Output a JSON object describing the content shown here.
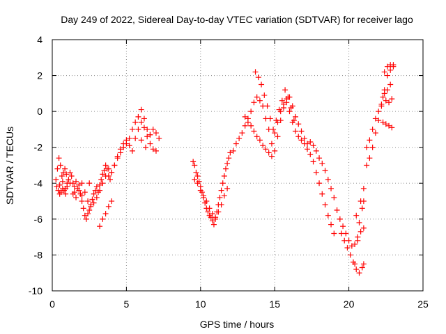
{
  "chart_data": {
    "type": "scatter",
    "title": "Day 249 of 2022, Sidereal Day-to-day VTEC variation (SDTVAR) for receiver lago",
    "xlabel": "GPS time / hours",
    "ylabel": "SDTVAR / TECUs",
    "xlim": [
      0,
      25
    ],
    "ylim": [
      -10,
      4
    ],
    "xticks": [
      0,
      5,
      10,
      15,
      20,
      25
    ],
    "yticks": [
      -10,
      -8,
      -6,
      -4,
      -2,
      0,
      2,
      4
    ],
    "xtick_labels": [
      "0",
      "5",
      "10",
      "15",
      "20",
      "25"
    ],
    "ytick_labels": [
      "-10",
      "-8",
      "-6",
      "-4",
      "-2",
      "0",
      "2",
      "4"
    ],
    "grid": true,
    "marker": "+",
    "series": [
      {
        "name": "SDTVAR",
        "color": "#ff0000",
        "x": [
          0.25,
          0.35,
          0.45,
          0.55,
          0.65,
          0.75,
          0.85,
          0.95,
          1.0,
          1.1,
          1.2,
          1.3,
          1.4,
          1.5,
          1.6,
          1.7,
          1.8,
          1.9,
          2.0,
          2.1,
          2.2,
          2.3,
          2.4,
          2.5,
          2.6,
          2.7,
          2.8,
          2.9,
          3.0,
          3.1,
          3.2,
          3.3,
          3.4,
          3.5,
          3.6,
          3.7,
          3.8,
          3.9,
          4.0,
          4.2,
          4.4,
          4.6,
          4.8,
          5.0,
          5.2,
          5.4,
          5.6,
          5.8,
          6.0,
          6.2,
          6.4,
          6.6,
          6.8,
          7.0,
          7.2,
          0.3,
          0.4,
          0.5,
          0.6,
          0.7,
          0.8,
          0.9,
          1.0,
          1.2,
          1.4,
          1.6,
          1.8,
          2.0,
          2.2,
          2.4,
          2.6,
          2.8,
          3.0,
          3.2,
          3.4,
          3.6,
          3.8,
          4.0,
          4.2,
          4.4,
          4.6,
          4.8,
          5.0,
          5.2,
          5.4,
          5.6,
          5.8,
          6.0,
          6.2,
          6.4,
          6.6,
          6.8,
          7.0,
          3.2,
          3.4,
          3.6,
          3.8,
          4.0,
          0.5,
          0.7,
          0.9,
          1.5,
          2.0,
          2.5,
          6.0,
          6.3,
          6.6,
          9.5,
          9.6,
          9.7,
          9.8,
          9.9,
          10.0,
          10.1,
          10.2,
          10.3,
          10.4,
          10.5,
          10.6,
          10.7,
          10.8,
          10.9,
          11.0,
          11.1,
          11.2,
          11.3,
          11.4,
          11.5,
          11.6,
          11.7,
          11.8,
          11.9,
          12.0,
          9.6,
          9.8,
          10.0,
          10.2,
          10.4,
          10.6,
          10.8,
          11.0,
          11.2,
          11.4,
          11.6,
          11.8,
          12.2,
          12.4,
          12.6,
          12.8,
          13.0,
          13.2,
          13.4,
          13.6,
          13.8,
          14.0,
          14.2,
          14.4,
          14.6,
          14.8,
          15.0,
          15.2,
          15.4,
          15.6,
          15.8,
          16.0,
          16.2,
          16.4,
          16.6,
          16.8,
          17.0,
          17.2,
          17.4,
          17.6,
          17.8,
          18.0,
          18.2,
          18.4,
          18.6,
          18.8,
          19.0,
          19.2,
          19.4,
          19.6,
          19.8,
          20.0,
          20.2,
          20.4,
          20.6,
          20.8,
          21.0,
          13.0,
          13.2,
          13.4,
          13.6,
          13.8,
          14.0,
          14.2,
          14.4,
          14.6,
          14.8,
          15.0,
          15.2,
          15.4,
          15.6,
          15.8,
          16.0,
          16.2,
          16.4,
          16.6,
          16.8,
          17.0,
          17.2,
          17.4,
          17.6,
          17.8,
          18.0,
          18.2,
          18.4,
          18.6,
          18.8,
          19.0,
          13.7,
          13.9,
          14.1,
          14.3,
          14.5,
          14.7,
          14.9,
          15.1,
          15.3,
          15.5,
          15.7,
          15.9,
          16.1,
          16.3,
          19.5,
          19.7,
          19.9,
          20.1,
          20.3,
          20.5,
          20.7,
          20.9,
          21.0,
          20.4,
          20.6,
          20.8,
          21.0,
          21.2,
          21.4,
          21.6,
          21.8,
          22.0,
          22.2,
          22.4,
          22.6,
          22.8,
          23.0,
          21.2,
          21.4,
          21.6,
          21.8,
          22.0,
          22.2,
          22.4,
          22.6,
          22.8,
          22.3,
          22.5,
          22.7,
          22.9,
          22.3,
          22.5,
          22.7,
          22.9,
          22.4,
          22.6,
          22.8,
          23.0,
          20.5,
          20.7,
          20.9,
          21.0
        ],
        "y": [
          -3.8,
          -3.2,
          -2.6,
          -3.0,
          -3.6,
          -3.4,
          -3.2,
          -3.5,
          -4.0,
          -3.8,
          -3.4,
          -3.6,
          -4.0,
          -4.2,
          -3.9,
          -4.3,
          -4.1,
          -4.6,
          -5.0,
          -5.4,
          -5.8,
          -6.0,
          -5.7,
          -5.5,
          -5.2,
          -4.9,
          -4.6,
          -4.4,
          -4.2,
          -4.5,
          -4.1,
          -3.8,
          -3.5,
          -3.3,
          -3.0,
          -3.2,
          -3.6,
          -3.8,
          -3.4,
          -3.0,
          -2.6,
          -2.3,
          -2.0,
          -1.8,
          -1.5,
          -1.0,
          -0.6,
          -0.3,
          0.1,
          -0.4,
          -1.0,
          -1.3,
          -1.0,
          -1.2,
          -1.5,
          -4.2,
          -4.4,
          -4.6,
          -4.5,
          -4.3,
          -4.4,
          -4.6,
          -4.2,
          -4.0,
          -4.6,
          -4.8,
          -4.4,
          -4.0,
          -4.5,
          -5.0,
          -5.3,
          -5.1,
          -4.8,
          -4.4,
          -4.0,
          -3.6,
          -3.2,
          -3.4,
          -3.0,
          -2.5,
          -2.1,
          -1.8,
          -1.6,
          -1.9,
          -2.2,
          -1.5,
          -1.0,
          -0.6,
          -0.9,
          -1.4,
          -1.8,
          -2.1,
          -2.2,
          -6.4,
          -6.0,
          -5.7,
          -5.3,
          -5.0,
          -4.1,
          -3.9,
          -4.3,
          -4.5,
          -4.7,
          -4.0,
          -1.6,
          -2.0,
          -1.3,
          -2.8,
          -3.0,
          -3.4,
          -3.6,
          -3.9,
          -4.2,
          -4.5,
          -4.8,
          -5.1,
          -5.4,
          -5.6,
          -5.8,
          -5.9,
          -6.1,
          -6.3,
          -6.0,
          -5.6,
          -5.2,
          -4.8,
          -4.4,
          -4.0,
          -3.6,
          -3.2,
          -2.9,
          -2.6,
          -2.3,
          -3.8,
          -4.0,
          -4.4,
          -4.7,
          -5.0,
          -5.4,
          -5.7,
          -5.9,
          -5.6,
          -5.2,
          -4.7,
          -4.3,
          -2.2,
          -1.8,
          -1.5,
          -1.2,
          -0.8,
          -0.4,
          0.0,
          0.5,
          0.8,
          0.6,
          0.3,
          -0.4,
          -1.0,
          -1.8,
          -1.2,
          -0.6,
          0.0,
          0.4,
          0.7,
          0.8,
          0.3,
          -0.3,
          -0.7,
          -1.1,
          -1.5,
          -1.8,
          -1.7,
          -1.9,
          -2.2,
          -2.6,
          -2.9,
          -3.3,
          -3.8,
          -4.3,
          -4.8,
          -5.5,
          -6.0,
          -6.4,
          -6.8,
          -7.2,
          -7.5,
          -7.4,
          -7.0,
          -6.7,
          -6.5,
          -0.3,
          -0.6,
          -0.8,
          -1.1,
          -1.4,
          -1.6,
          -1.9,
          -2.1,
          -2.3,
          -2.5,
          -2.2,
          -1.4,
          -0.5,
          0.2,
          0.5,
          0.0,
          -0.6,
          -1.1,
          -1.4,
          -1.6,
          -1.8,
          -2.1,
          -2.4,
          -2.8,
          -3.4,
          -4.0,
          -4.6,
          -5.2,
          -5.8,
          -6.3,
          -6.8,
          2.2,
          1.9,
          1.5,
          0.9,
          0.3,
          -0.4,
          -1.0,
          -0.5,
          0.1,
          0.6,
          1.2,
          0.8,
          0.2,
          -0.5,
          -6.8,
          -7.2,
          -7.6,
          -8.0,
          -8.4,
          -8.8,
          -9.0,
          -8.7,
          -8.5,
          -8.5,
          -7.2,
          -5.0,
          -4.3,
          -3.0,
          -2.6,
          -2.0,
          -1.2,
          -0.5,
          0.4,
          1.2,
          2.0,
          2.3,
          2.6,
          -2.0,
          -1.6,
          -1.0,
          -0.4,
          0.0,
          0.3,
          1.0,
          1.2,
          1.5,
          0.8,
          0.6,
          0.5,
          0.7,
          -0.6,
          -0.7,
          -0.8,
          -0.9,
          2.2,
          2.5,
          2.6,
          2.5,
          -5.8,
          -6.2,
          -5.4,
          -5.0
        ]
      }
    ]
  }
}
